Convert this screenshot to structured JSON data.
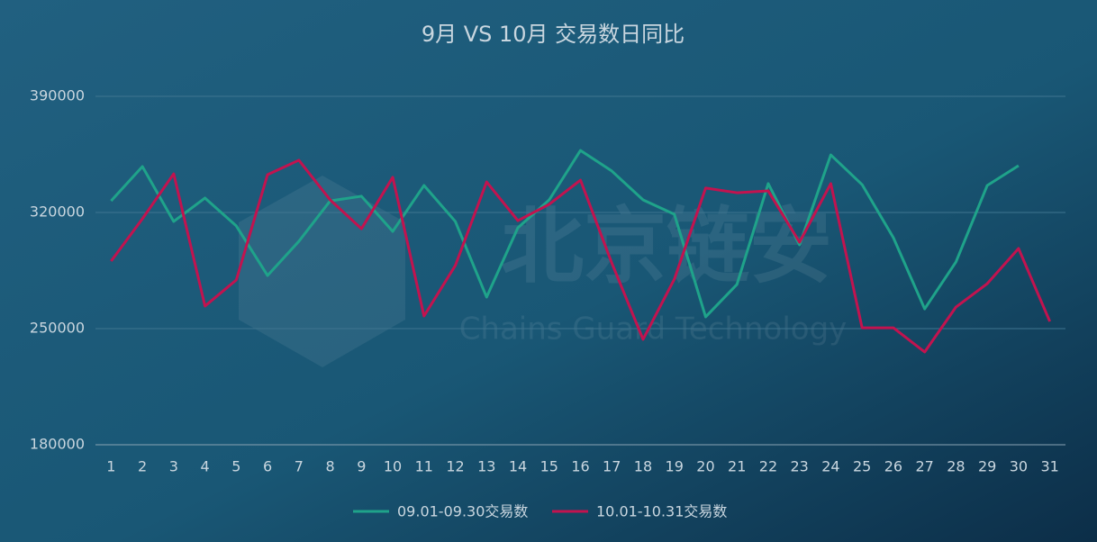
{
  "chart_data": {
    "type": "line",
    "title": "9月 VS 10月 交易数日同比",
    "watermark": "北京链安",
    "watermark_sub": "Chains Guard Technology",
    "categories": [
      "1",
      "2",
      "3",
      "4",
      "5",
      "6",
      "7",
      "8",
      "9",
      "10",
      "11",
      "12",
      "13",
      "14",
      "15",
      "16",
      "17",
      "18",
      "19",
      "20",
      "21",
      "22",
      "23",
      "24",
      "25",
      "26",
      "27",
      "28",
      "29",
      "30",
      "31"
    ],
    "series": [
      {
        "name": "09.01-09.30交易数",
        "color": "#1fa38a",
        "values": [
          327000,
          347700,
          314600,
          328700,
          311900,
          282000,
          302600,
          327000,
          329800,
          308600,
          336300,
          314600,
          269000,
          310800,
          327600,
          357400,
          345000,
          327600,
          318900,
          257100,
          276600,
          337400,
          300500,
          354700,
          336800,
          304800,
          261900,
          290200,
          336300,
          348200,
          null
        ]
      },
      {
        "name": "10.01-10.31交易数",
        "color": "#c2134f",
        "values": [
          290700,
          316200,
          343300,
          263600,
          279300,
          342800,
          351500,
          327600,
          310200,
          341200,
          257600,
          288000,
          338400,
          315100,
          324900,
          339500,
          289600,
          243500,
          279800,
          334700,
          331900,
          333000,
          302100,
          337400,
          250500,
          250500,
          235900,
          263000,
          277100,
          298300,
          254300
        ]
      }
    ],
    "ylim": [
      180000,
      390000
    ],
    "yticks": [
      180000,
      250000,
      320000,
      390000
    ],
    "grid": true,
    "legend": "bottom"
  }
}
